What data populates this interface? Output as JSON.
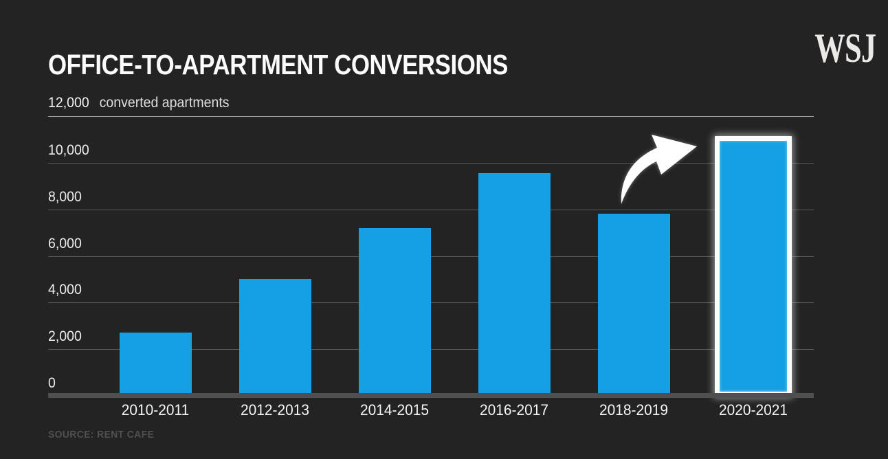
{
  "brand": "WSJ",
  "title": "OFFICE-TO-APARTMENT CONVERSIONS",
  "axis_header": {
    "value": "12,000",
    "label": "converted apartments"
  },
  "source": "SOURCE: RENT CAFE",
  "colors": {
    "background": "#232323",
    "bar": "#14A0E3",
    "grid": "#5b5b5b",
    "grid_top": "#a6a6a6",
    "baseline": "#4f4f51",
    "text": "#ececec",
    "highlight_outline": "#ffffff",
    "source_text": "#505050"
  },
  "chart_data": {
    "type": "bar",
    "title": "OFFICE-TO-APARTMENT CONVERSIONS",
    "ylabel": "converted apartments",
    "categories": [
      "2010-2011",
      "2012-2013",
      "2014-2015",
      "2016-2017",
      "2018-2019",
      "2020-2021"
    ],
    "values": [
      2700,
      5000,
      7200,
      9550,
      7800,
      10900
    ],
    "ylim": [
      0,
      12000
    ],
    "yticks": [
      0,
      2000,
      4000,
      6000,
      8000,
      10000,
      12000
    ],
    "ytick_labels": [
      "0",
      "2,000",
      "4,000",
      "6,000",
      "8,000",
      "10,000",
      "12,000"
    ],
    "grid": true,
    "legend": "none",
    "highlight_index": 5,
    "annotation": "white curved arrow pointing to highlighted 2020-2021 bar"
  }
}
